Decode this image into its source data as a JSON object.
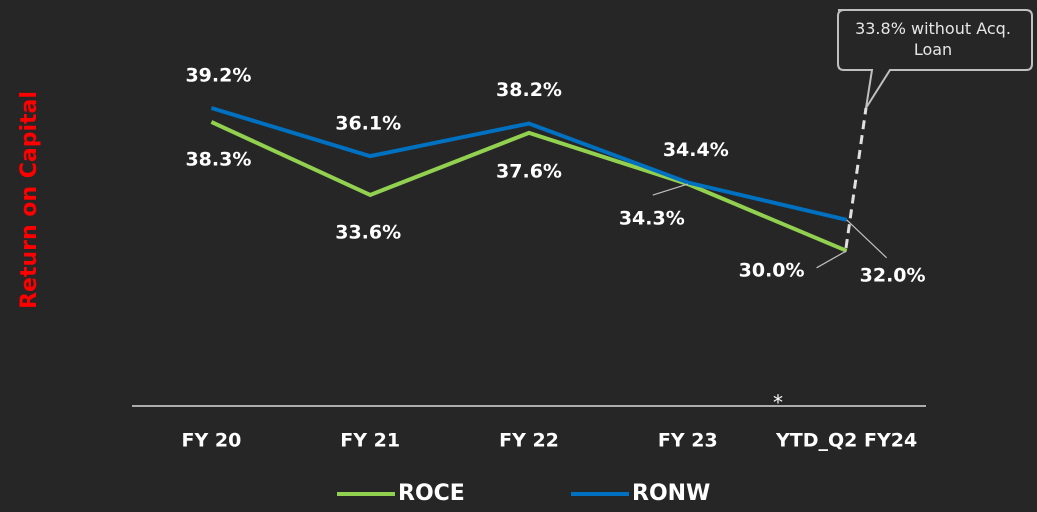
{
  "chart_data": {
    "type": "line",
    "y_axis_label": "Return on Capital",
    "categories": [
      "FY 20",
      "FY 21",
      "FY 22",
      "FY 23",
      "YTD_Q2 FY24"
    ],
    "series": [
      {
        "name": "ROCE",
        "color": "#92d050",
        "values": [
          38.3,
          33.6,
          37.6,
          34.3,
          30.0
        ],
        "value_labels": [
          "38.3%",
          "33.6%",
          "37.6%",
          "34.3%",
          "30.0%"
        ]
      },
      {
        "name": "RONW",
        "color": "#0070c0",
        "values": [
          39.2,
          36.1,
          38.2,
          34.4,
          32.0
        ],
        "value_labels": [
          "39.2%",
          "36.1%",
          "38.2%",
          "34.4%",
          "32.0%"
        ]
      }
    ],
    "ylim": [
      20,
      45
    ],
    "annotations": [
      "33.8% without Acq. Loan",
      "*"
    ]
  }
}
